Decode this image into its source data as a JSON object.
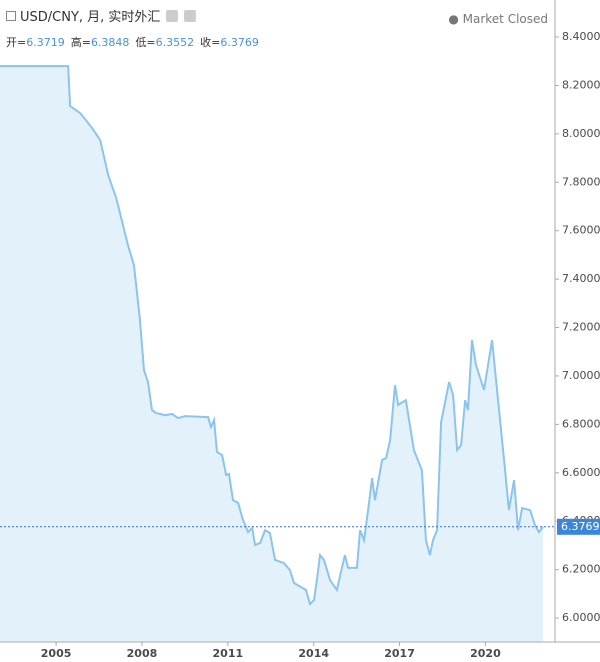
{
  "header": {
    "title": "USD/CNY, 月, 实时外汇",
    "status": "Market Closed",
    "ohlc": [
      {
        "label": "开=",
        "value": "6.3719"
      },
      {
        "label": "高=",
        "value": "6.3848"
      },
      {
        "label": "低=",
        "value": "6.3552"
      },
      {
        "label": "收=",
        "value": "6.3769"
      }
    ]
  },
  "chart_data": {
    "type": "area",
    "color": "#8cc4ec",
    "fill": "#e3f1fb",
    "x": [
      2003.04,
      2005.42,
      2005.49,
      2005.84,
      2006.26,
      2006.54,
      2006.82,
      2007.1,
      2007.31,
      2007.51,
      2007.72,
      2007.93,
      2008.07,
      2008.21,
      2008.35,
      2008.49,
      2008.81,
      2009.05,
      2009.26,
      2009.51,
      2010.31,
      2010.41,
      2010.52,
      2010.62,
      2010.8,
      2010.94,
      2011.04,
      2011.18,
      2011.36,
      2011.53,
      2011.71,
      2011.85,
      2011.95,
      2012.13,
      2012.3,
      2012.47,
      2012.65,
      2012.96,
      2013.17,
      2013.31,
      2013.73,
      2013.87,
      2014.01,
      2014.12,
      2014.22,
      2014.36,
      2014.57,
      2014.81,
      2014.95,
      2015.09,
      2015.2,
      2015.51,
      2015.62,
      2015.76,
      2015.9,
      2016.04,
      2016.14,
      2016.39,
      2016.53,
      2016.67,
      2016.84,
      2016.95,
      2017.22,
      2017.36,
      2017.5,
      2017.78,
      2017.92,
      2018.06,
      2018.17,
      2018.31,
      2018.45,
      2018.73,
      2018.87,
      2019.01,
      2019.15,
      2019.29,
      2019.39,
      2019.53,
      2019.67,
      2019.95,
      2020.23,
      2020.51,
      2020.65,
      2020.82,
      2021.0,
      2021.14,
      2021.28,
      2021.56,
      2021.73,
      2021.87,
      2022.01
    ],
    "values": [
      8.28,
      8.28,
      8.115,
      8.086,
      8.024,
      7.974,
      7.83,
      7.735,
      7.636,
      7.541,
      7.458,
      7.231,
      7.024,
      6.975,
      6.859,
      6.847,
      6.838,
      6.843,
      6.826,
      6.834,
      6.83,
      6.789,
      6.818,
      6.686,
      6.673,
      6.591,
      6.595,
      6.487,
      6.475,
      6.405,
      6.355,
      6.372,
      6.302,
      6.31,
      6.363,
      6.351,
      6.24,
      6.227,
      6.198,
      6.145,
      6.116,
      6.058,
      6.074,
      6.165,
      6.26,
      6.24,
      6.157,
      6.116,
      6.19,
      6.26,
      6.207,
      6.207,
      6.363,
      6.322,
      6.446,
      6.578,
      6.487,
      6.653,
      6.661,
      6.735,
      6.962,
      6.88,
      6.9,
      6.797,
      6.694,
      6.611,
      6.322,
      6.26,
      6.322,
      6.363,
      6.809,
      6.975,
      6.921,
      6.694,
      6.715,
      6.9,
      6.859,
      7.148,
      7.045,
      6.942,
      7.148,
      6.818,
      6.653,
      6.446,
      6.57,
      6.363,
      6.454,
      6.446,
      6.384,
      6.355,
      6.377
    ],
    "xlim": [
      2003.04,
      2022.43
    ],
    "ylim": [
      5.901,
      8.553
    ],
    "xticks": [
      2005,
      2008,
      2011,
      2014,
      2017,
      2020
    ],
    "yticks": [
      {
        "value": 6.0,
        "label": "6.0000"
      },
      {
        "value": 6.2,
        "label": "6.2000"
      },
      {
        "value": 6.4,
        "label": "6.4000"
      },
      {
        "value": 6.6,
        "label": "6.6000"
      },
      {
        "value": 6.8,
        "label": "6.8000"
      },
      {
        "value": 7.0,
        "label": "7.0000"
      },
      {
        "value": 7.2,
        "label": "7.2000"
      },
      {
        "value": 7.4,
        "label": "7.4000"
      },
      {
        "value": 7.6,
        "label": "7.6000"
      },
      {
        "value": 7.8,
        "label": "7.8000"
      },
      {
        "value": 8.0,
        "label": "8.0000"
      },
      {
        "value": 8.2,
        "label": "8.2000"
      },
      {
        "value": 8.4,
        "label": "8.4000"
      }
    ],
    "last_value": 6.3769
  }
}
